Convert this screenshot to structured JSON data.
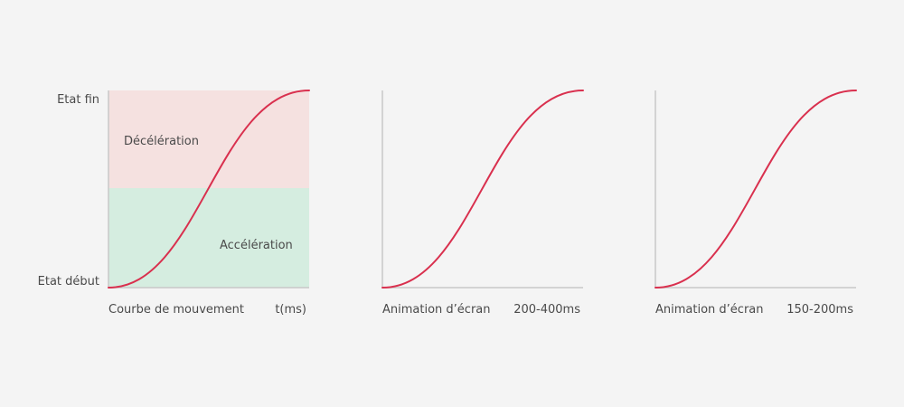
{
  "colors": {
    "background": "#f4f4f4",
    "curve": "#d9304e",
    "axis": "#c8c8c8",
    "deceleration_zone": "#f5e1e0",
    "acceleration_zone": "#d5ede0",
    "text": "#4a4a4a"
  },
  "panel1": {
    "y_label_end": "Etat fin",
    "y_label_start": "Etat début",
    "zone_top_label": "Décélération",
    "zone_bottom_label": "Accélération",
    "caption": "Courbe de mouvement",
    "time_label": "t(ms)"
  },
  "panel2": {
    "caption": "Animation d’écran",
    "time_label": "200-400ms"
  },
  "panel3": {
    "caption": "Animation d’écran",
    "time_label": "150-200ms"
  }
}
